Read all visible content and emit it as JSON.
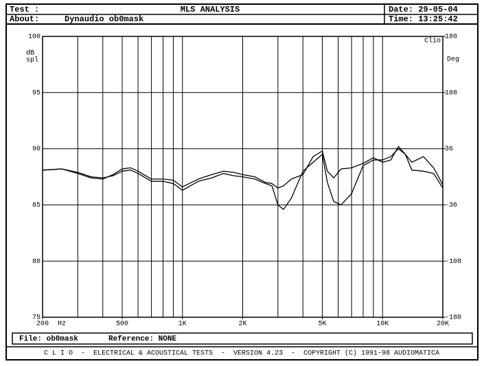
{
  "header": {
    "test_label": "Test :",
    "title": "MLS ANALYSIS",
    "date": "Date: 29-05-04",
    "about_label": "About:",
    "about": "Dynaudio ob0mask",
    "time": "Time: 13:25:42"
  },
  "chart_data": {
    "type": "line",
    "annotation": "Clio",
    "ylabel": [
      "dB",
      "spl"
    ],
    "y2label": "Deg",
    "xlabel": "Hz",
    "log_x": true,
    "grid": true,
    "x": [
      200,
      250,
      300,
      350,
      400,
      450,
      500,
      550,
      600,
      700,
      800,
      900,
      1000,
      1200,
      1400,
      1600,
      1800,
      2000,
      2300,
      2600,
      2800,
      3000,
      3200,
      3500,
      4000,
      4500,
      5000,
      5300,
      5700,
      6200,
      7000,
      8000,
      9000,
      10000,
      11000,
      12000,
      13000,
      14000,
      16000,
      18000,
      20000
    ],
    "series": [
      {
        "color": "#000000",
        "values": [
          88.1,
          88.2,
          87.9,
          87.5,
          87.4,
          87.6,
          88.0,
          88.1,
          87.8,
          87.1,
          87.1,
          86.9,
          86.3,
          87.1,
          87.4,
          87.8,
          87.6,
          87.5,
          87.3,
          86.9,
          86.7,
          85.0,
          84.6,
          85.6,
          88.0,
          88.8,
          89.5,
          87.0,
          85.3,
          85.0,
          86.0,
          88.5,
          89.0,
          89.0,
          89.3,
          90.0,
          89.5,
          88.1,
          88.0,
          87.8,
          86.5
        ]
      },
      {
        "color": "#000000",
        "values": [
          88.1,
          88.2,
          87.8,
          87.4,
          87.3,
          87.7,
          88.2,
          88.3,
          88.0,
          87.3,
          87.3,
          87.2,
          86.6,
          87.3,
          87.7,
          88.0,
          87.9,
          87.7,
          87.5,
          87.0,
          86.9,
          86.5,
          86.7,
          87.3,
          87.7,
          89.3,
          89.8,
          88.0,
          87.4,
          88.2,
          88.3,
          88.7,
          89.2,
          88.8,
          89.0,
          90.2,
          89.5,
          88.8,
          89.3,
          88.3,
          86.8
        ]
      }
    ],
    "xlim": [
      200,
      20000
    ],
    "xticks": [
      200,
      500,
      {
        "value": 1000,
        "label": "1K"
      },
      {
        "value": 2000,
        "label": "2K"
      },
      {
        "value": 5000,
        "label": "5K"
      },
      {
        "value": 10000,
        "label": "10K"
      },
      {
        "value": 20000,
        "label": "20K"
      }
    ],
    "xgrid": [
      300,
      400,
      500,
      600,
      700,
      800,
      900,
      1000,
      2000,
      3000,
      4000,
      5000,
      6000,
      7000,
      8000,
      9000,
      10000
    ],
    "ylim": [
      75,
      100
    ],
    "yticks": [
      75,
      80,
      85,
      90,
      95,
      100
    ],
    "y2lim": [
      -180,
      180
    ],
    "y2ticks": [
      -180,
      -108,
      -36,
      36,
      108,
      180
    ]
  },
  "footer": {
    "file": "File: ob0mask",
    "reference": "Reference: NONE",
    "banner": "C L I O  -  ELECTRICAL & ACOUSTICAL TESTS  -  VERSION 4.23  -  COPYRIGHT (C) 1991-98 AUDIOMATICA"
  }
}
